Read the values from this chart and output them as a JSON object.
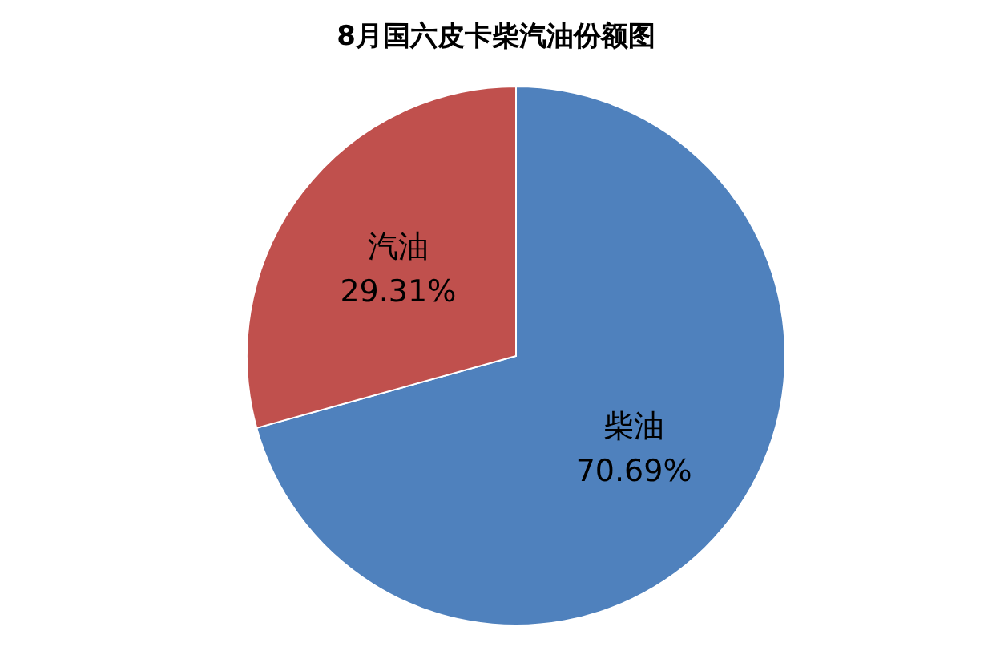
{
  "chart_data": {
    "type": "pie",
    "title": "8月国六皮卡柴汽油份额图",
    "categories": [
      "柴油",
      "汽油"
    ],
    "values": [
      70.69,
      29.31
    ],
    "colors": [
      "#4f81bd",
      "#c0504d"
    ],
    "value_labels": [
      "70.69%",
      "29.31%"
    ]
  }
}
